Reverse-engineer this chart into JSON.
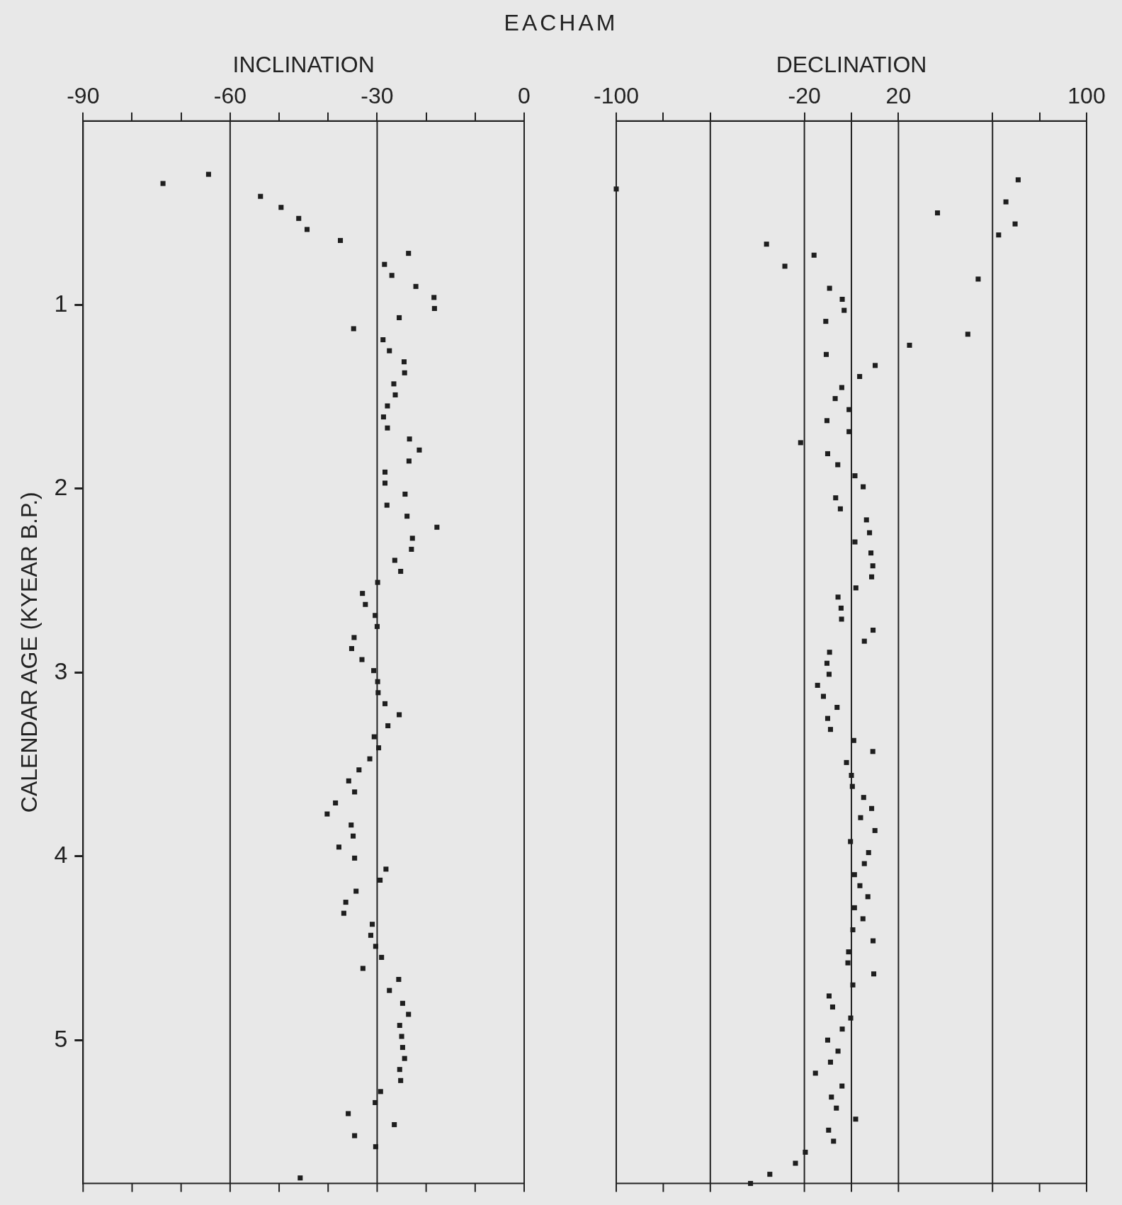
{
  "chart_data": [
    {
      "type": "scatter",
      "title": "EACHAM",
      "xlabel": "INCLINATION",
      "ylabel": "CALENDAR AGE (KYEAR B.P.)",
      "marker": "square",
      "color": "#1e1e1e",
      "x": [
        -73.7,
        -64.4,
        -53.8,
        -49.6,
        -46.0,
        -44.3,
        -37.5,
        -23.6,
        -28.5,
        -27.0,
        -22.1,
        -18.4,
        -18.3,
        -25.5,
        -34.8,
        -28.8,
        -27.5,
        -24.5,
        -24.4,
        -26.6,
        -26.3,
        -27.9,
        -28.7,
        -27.9,
        -23.4,
        -21.4,
        -23.5,
        -28.4,
        -28.4,
        -24.3,
        -28.0,
        -23.9,
        -17.8,
        -22.8,
        -23.0,
        -26.4,
        -25.2,
        -29.9,
        -33.0,
        -32.4,
        -30.4,
        -30.0,
        -34.7,
        -35.2,
        -33.1,
        -30.7,
        -29.9,
        -29.8,
        -28.4,
        -25.5,
        -27.8,
        -30.6,
        -29.7,
        -31.5,
        -33.7,
        -35.8,
        -34.6,
        -38.5,
        -40.2,
        -35.3,
        -34.9,
        -37.8,
        -34.6,
        -28.2,
        -29.4,
        -34.3,
        -36.4,
        -36.8,
        -31.0,
        -31.3,
        -30.3,
        -29.1,
        -32.9,
        -25.6,
        -27.5,
        -24.8,
        -23.6,
        -25.4,
        -25.0,
        -24.8,
        -24.4,
        -25.4,
        -25.2,
        -29.3,
        -30.4,
        -35.9,
        -26.5,
        -34.6,
        -30.3,
        -45.7
      ],
      "values": [
        0.34,
        0.29,
        0.41,
        0.47,
        0.53,
        0.59,
        0.65,
        0.72,
        0.78,
        0.84,
        0.9,
        0.96,
        1.02,
        1.07,
        1.13,
        1.19,
        1.25,
        1.31,
        1.37,
        1.43,
        1.49,
        1.55,
        1.61,
        1.67,
        1.73,
        1.79,
        1.85,
        1.91,
        1.97,
        2.03,
        2.09,
        2.15,
        2.21,
        2.27,
        2.33,
        2.39,
        2.45,
        2.51,
        2.57,
        2.63,
        2.69,
        2.75,
        2.81,
        2.87,
        2.93,
        2.99,
        3.05,
        3.11,
        3.17,
        3.23,
        3.29,
        3.35,
        3.41,
        3.47,
        3.53,
        3.59,
        3.65,
        3.71,
        3.77,
        3.83,
        3.89,
        3.95,
        4.01,
        4.07,
        4.13,
        4.19,
        4.25,
        4.31,
        4.37,
        4.43,
        4.49,
        4.55,
        4.61,
        4.67,
        4.73,
        4.8,
        4.86,
        4.92,
        4.98,
        5.04,
        5.1,
        5.16,
        5.22,
        5.28,
        5.34,
        5.4,
        5.46,
        5.52,
        5.58,
        5.75
      ],
      "xlim": [
        -90,
        0
      ],
      "xticks": [
        -90,
        {
          "value": -80,
          "label": null
        },
        {
          "value": -70,
          "label": null
        },
        -60,
        {
          "value": -50,
          "label": null
        },
        {
          "value": -40,
          "label": null
        },
        -30,
        {
          "value": -20,
          "label": null
        },
        {
          "value": -10,
          "label": null
        },
        0
      ],
      "ylim": [
        5.78,
        0
      ],
      "yticks": [
        1,
        2,
        3,
        4,
        5
      ],
      "ref_lines": [
        {
          "axis": "x",
          "value": -60,
          "color": "#222222"
        },
        {
          "axis": "x",
          "value": -30,
          "color": "#222222"
        }
      ]
    },
    {
      "type": "scatter",
      "xlabel": "DECLINATION",
      "marker": "square",
      "color": "#1e1e1e",
      "tick_labels": "x",
      "x": [
        -100,
        70.9,
        65.7,
        36.6,
        69.6,
        62.6,
        -36.1,
        -15.9,
        -28.3,
        53.9,
        -9.3,
        -3.9,
        -3.1,
        -10.9,
        49.5,
        24.7,
        -10.7,
        10.1,
        3.5,
        -4.1,
        -6.9,
        -1.0,
        -10.4,
        -1.0,
        -21.6,
        -10.1,
        -5.8,
        1.5,
        5.0,
        -6.7,
        -4.7,
        6.4,
        7.7,
        1.5,
        8.3,
        9.1,
        8.6,
        1.9,
        -5.7,
        -4.4,
        -4.2,
        9.2,
        5.5,
        -9.3,
        -10.4,
        -9.5,
        -14.4,
        -11.9,
        -6.1,
        -10.1,
        -8.9,
        1.0,
        9.1,
        -2.1,
        0.0,
        0.4,
        5.2,
        8.6,
        3.9,
        10.0,
        -0.4,
        7.3,
        5.5,
        1.3,
        3.6,
        7.0,
        1.3,
        4.9,
        0.6,
        9.2,
        -1.2,
        -1.5,
        9.5,
        0.6,
        -9.5,
        -8.0,
        -0.3,
        -3.9,
        -10.1,
        -5.7,
        -8.9,
        -15.3,
        -4.0,
        -8.5,
        -6.4,
        1.8,
        -9.7,
        -7.6,
        -19.6,
        -23.8,
        -34.7,
        -42.9
      ],
      "values": [
        0.37,
        0.32,
        0.44,
        0.5,
        0.56,
        0.62,
        0.67,
        0.73,
        0.79,
        0.86,
        0.91,
        0.97,
        1.03,
        1.09,
        1.16,
        1.22,
        1.27,
        1.33,
        1.39,
        1.45,
        1.51,
        1.57,
        1.63,
        1.69,
        1.75,
        1.81,
        1.87,
        1.93,
        1.99,
        2.05,
        2.11,
        2.17,
        2.24,
        2.29,
        2.35,
        2.42,
        2.48,
        2.54,
        2.59,
        2.65,
        2.71,
        2.77,
        2.83,
        2.89,
        2.95,
        3.01,
        3.07,
        3.13,
        3.19,
        3.25,
        3.31,
        3.37,
        3.43,
        3.49,
        3.56,
        3.62,
        3.68,
        3.74,
        3.79,
        3.86,
        3.92,
        3.98,
        4.04,
        4.1,
        4.16,
        4.22,
        4.28,
        4.34,
        4.4,
        4.46,
        4.52,
        4.58,
        4.64,
        4.7,
        4.76,
        4.82,
        4.88,
        4.94,
        5.0,
        5.06,
        5.12,
        5.18,
        5.25,
        5.31,
        5.37,
        5.43,
        5.49,
        5.55,
        5.61,
        5.67,
        5.73,
        5.78
      ],
      "xlim": [
        -100,
        100
      ],
      "xticks": [
        -100,
        {
          "value": -80,
          "label": null
        },
        {
          "value": -60,
          "label": null
        },
        -20,
        {
          "value": 0,
          "label": null
        },
        20,
        {
          "value": 60,
          "label": null
        },
        {
          "value": 80,
          "label": null
        },
        100
      ],
      "ylim": [
        5.78,
        0
      ],
      "ref_lines": [
        {
          "axis": "x",
          "value": -60,
          "color": "#222222"
        },
        {
          "axis": "x",
          "value": -20,
          "color": "#222222"
        },
        {
          "axis": "x",
          "value": 0,
          "color": "#222222"
        },
        {
          "axis": "x",
          "value": 20,
          "color": "#222222"
        },
        {
          "axis": "x",
          "value": 60,
          "color": "#222222"
        }
      ]
    }
  ]
}
